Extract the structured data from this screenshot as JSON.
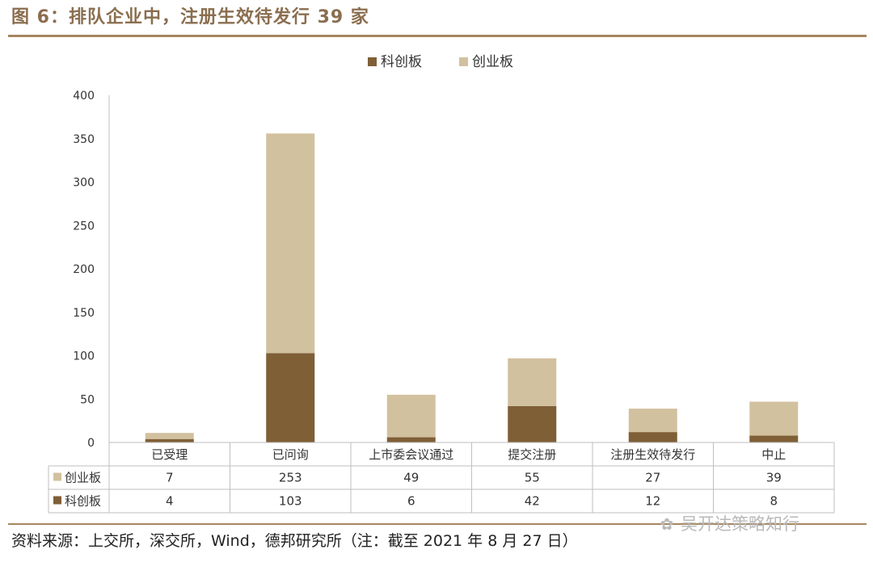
{
  "title": "图 6：排队企业中，注册生效待发行 39 家",
  "source": "资料来源：上交所，深交所，Wind，德邦研究所（注：截至 2021 年 8 月 27 日）",
  "watermark": "吴开达策略知行",
  "watermark_icon": "wechat-icon",
  "colors": {
    "科创板": "#7f5f36",
    "创业板": "#d2c19f",
    "accent": "#a6865f"
  },
  "chart_data": {
    "type": "bar",
    "stacked": true,
    "categories": [
      "已受理",
      "已问询",
      "上市委会议通过",
      "提交注册",
      "注册生效待发行",
      "中止"
    ],
    "series": [
      {
        "name": "科创板",
        "values": [
          4,
          103,
          6,
          42,
          12,
          8
        ]
      },
      {
        "name": "创业板",
        "values": [
          7,
          253,
          49,
          55,
          27,
          39
        ]
      }
    ],
    "yticks": [
      "0",
      "50",
      "100",
      "150",
      "200",
      "250",
      "300",
      "350",
      "400"
    ],
    "ylim": [
      0,
      400
    ],
    "legend": [
      "科创板",
      "创业板"
    ],
    "legend_position": "top-center",
    "table_rows": [
      {
        "label": "创业板",
        "values": [
          "7",
          "253",
          "49",
          "55",
          "27",
          "39"
        ]
      },
      {
        "label": "科创板",
        "values": [
          "4",
          "103",
          "6",
          "42",
          "12",
          "8"
        ]
      }
    ],
    "grid": false
  }
}
